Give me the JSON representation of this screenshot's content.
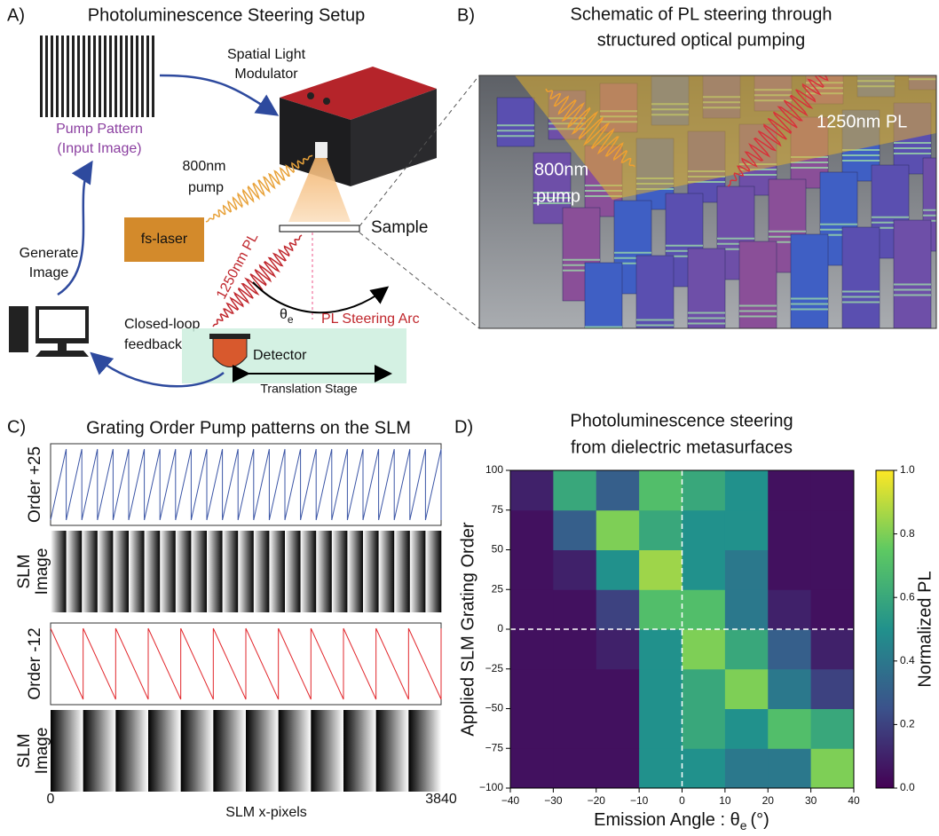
{
  "panel_a": {
    "label": "A)",
    "title": "Photoluminescence Steering Setup",
    "pump_pattern": [
      "Pump Pattern",
      "(Input Image)"
    ],
    "slm": [
      "Spatial Light",
      "Modulator"
    ],
    "pump": [
      "800nm",
      "pump"
    ],
    "laser": "fs-laser",
    "sample": "Sample",
    "pl": "1250nm PL",
    "generate": [
      "Generate",
      "Image"
    ],
    "theta": "θ",
    "theta_sub": "e",
    "arc": "PL Steering Arc",
    "feedback": [
      "Closed-loop",
      "feedback"
    ],
    "detector": "Detector",
    "stage": "Translation Stage"
  },
  "panel_b": {
    "label": "B)",
    "title": [
      "Schematic of  PL steering through",
      "structured optical pumping"
    ],
    "pump": [
      "800nm",
      "pump"
    ],
    "pl": "1250nm PL"
  },
  "panel_c": {
    "label": "C)",
    "title": "Grating Order Pump patterns on the SLM",
    "plots": [
      {
        "label": "Order +25",
        "order": 25,
        "color": "#3b55a6"
      },
      {
        "label": "Order -12",
        "order": -12,
        "color": "#e2272c"
      }
    ],
    "image_label": [
      "SLM",
      "Image"
    ],
    "xlim": [
      0,
      3840
    ],
    "xticks": [
      0,
      3840
    ],
    "xlabel": "SLM x-pixels"
  },
  "chart_data": {
    "type": "heatmap",
    "label": "D)",
    "title": [
      "Photoluminescence steering",
      "from dielectric metasurfaces"
    ],
    "xlabel": [
      "Emission Angle : θ",
      "e",
      "(°)"
    ],
    "ylabel": "Applied SLM Grating Order",
    "xlim": [
      -40,
      40
    ],
    "ylim": [
      -100,
      100
    ],
    "xticks": [
      {
        "value": -40,
        "label": "−40"
      },
      {
        "value": -30,
        "label": "−30"
      },
      {
        "value": -20,
        "label": "−20"
      },
      {
        "value": -10,
        "label": "−10"
      },
      0,
      10,
      20,
      30,
      40
    ],
    "yticks": [
      {
        "value": -100,
        "label": "−100"
      },
      {
        "value": -75,
        "label": "−75"
      },
      {
        "value": -50,
        "label": "−50"
      },
      {
        "value": -25,
        "label": "−25"
      },
      0,
      25,
      50,
      75,
      100
    ],
    "xbins": [
      -40,
      -30,
      -20,
      -10,
      0,
      10,
      20,
      30,
      40
    ],
    "ybins": [
      -100,
      -75,
      -50,
      -25,
      0,
      25,
      50,
      75,
      100
    ],
    "values": [
      [
        0.05,
        0.05,
        0.05,
        0.5,
        0.5,
        0.4,
        0.4,
        0.8
      ],
      [
        0.05,
        0.05,
        0.05,
        0.5,
        0.6,
        0.5,
        0.7,
        0.6
      ],
      [
        0.05,
        0.05,
        0.05,
        0.5,
        0.6,
        0.8,
        0.4,
        0.2
      ],
      [
        0.05,
        0.05,
        0.1,
        0.5,
        0.8,
        0.6,
        0.3,
        0.1
      ],
      [
        0.05,
        0.05,
        0.2,
        0.7,
        0.7,
        0.4,
        0.1,
        0.05
      ],
      [
        0.05,
        0.1,
        0.5,
        0.85,
        0.5,
        0.4,
        0.05,
        0.05
      ],
      [
        0.05,
        0.3,
        0.8,
        0.6,
        0.5,
        0.5,
        0.05,
        0.05
      ],
      [
        0.1,
        0.6,
        0.3,
        0.7,
        0.6,
        0.5,
        0.05,
        0.05
      ]
    ],
    "colormap": "viridis",
    "clim": [
      0,
      1
    ],
    "cticks": [
      {
        "value": 0,
        "label": "0.0"
      },
      0.2,
      0.4,
      0.6,
      0.8,
      {
        "value": 1,
        "label": "1.0"
      }
    ],
    "colorbar_label": "Normalized PL",
    "reference_lines": {
      "x": 0,
      "y": 0
    }
  }
}
